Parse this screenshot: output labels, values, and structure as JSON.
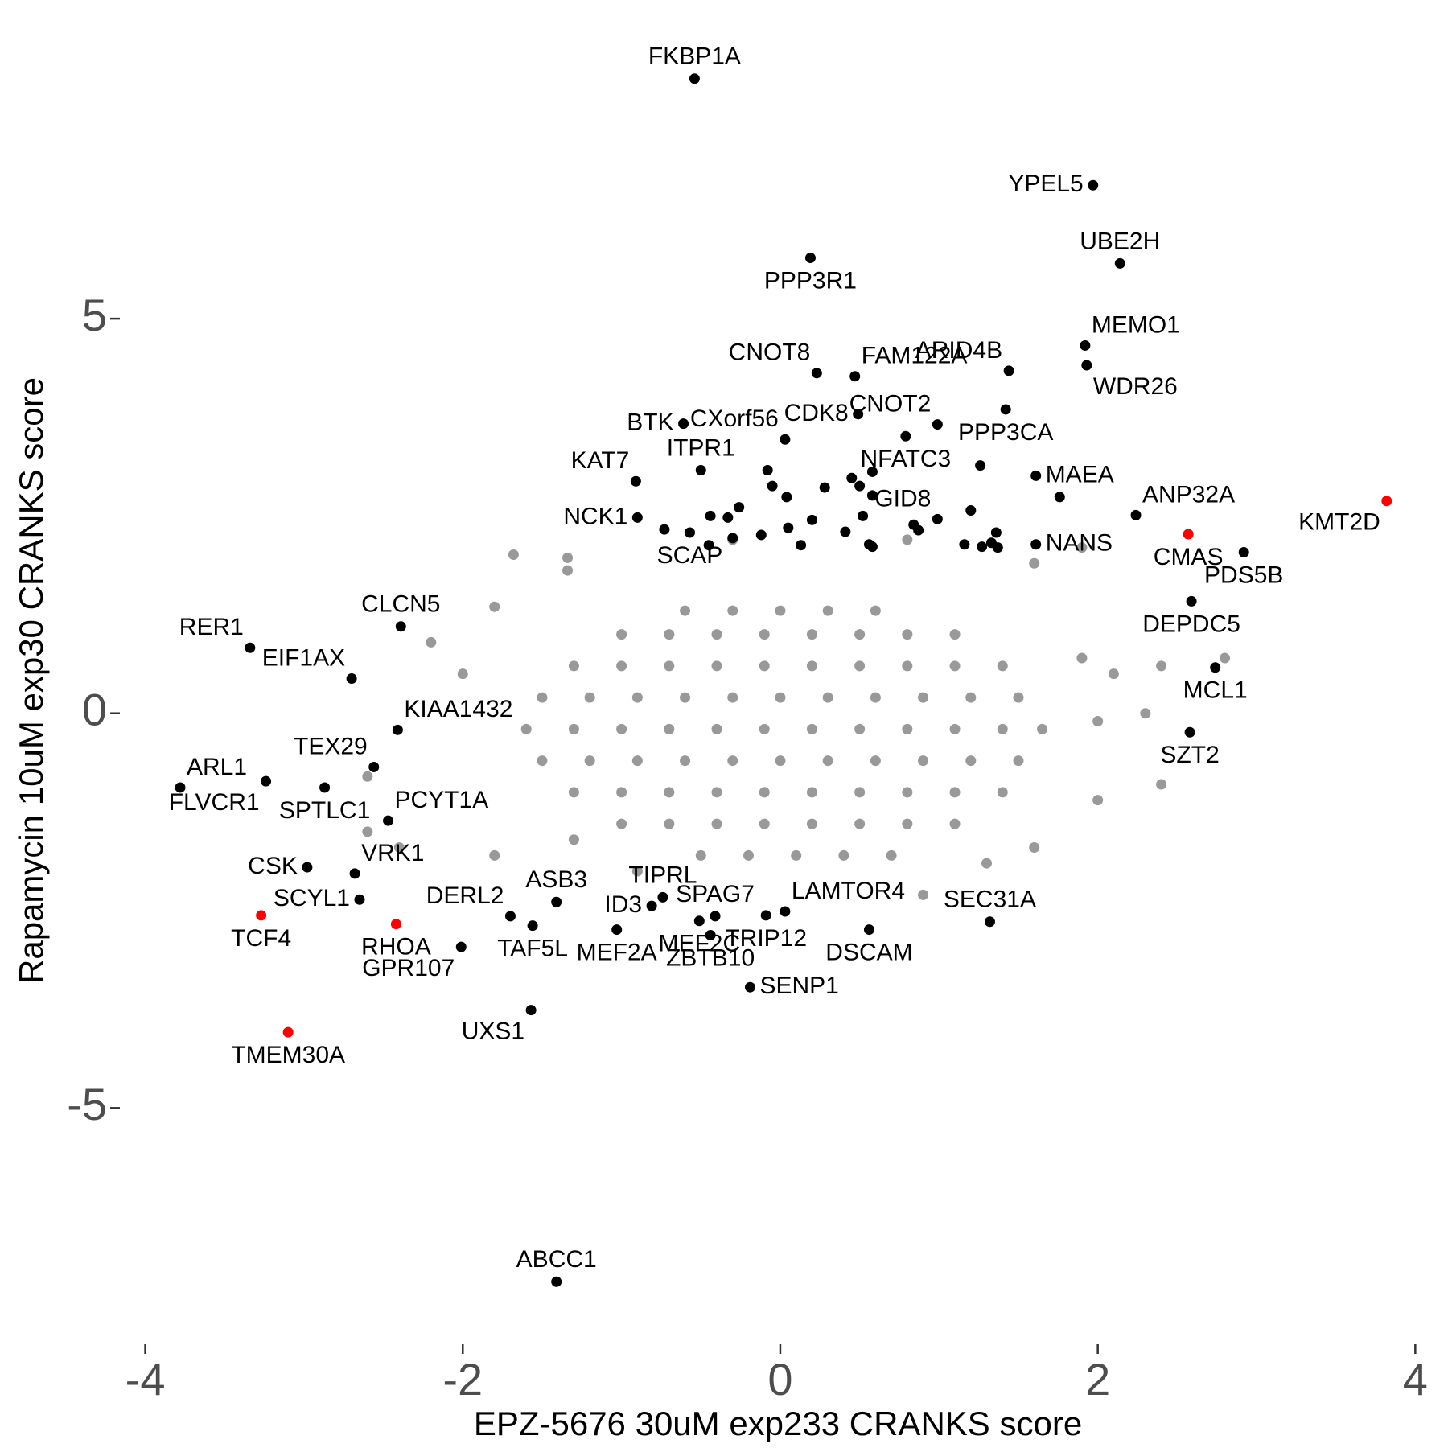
{
  "chart_data": {
    "type": "scatter",
    "x_label": "EPZ-5676 30uM exp233 CRANKS score",
    "y_label": "Rapamycin 10uM exp30 CRANKS score",
    "xlim": [
      -4.16,
      4.13
    ],
    "ylim": [
      -7.85,
      8.68
    ],
    "xticks": [
      -4,
      -2,
      0,
      2,
      4
    ],
    "yticks": [
      -5,
      0,
      5
    ],
    "grid": false,
    "series": [
      {
        "color": "#999999",
        "x": [
          -0.6,
          -0.3,
          0,
          0.3,
          0.6,
          -1.0,
          -0.7,
          -0.4,
          -0.1,
          0.2,
          0.5,
          0.8,
          1.1,
          -1.3,
          -1.0,
          -0.7,
          -0.4,
          -0.1,
          0.2,
          0.5,
          0.8,
          1.1,
          1.4,
          -1.5,
          -1.2,
          -0.9,
          -0.6,
          -0.3,
          0,
          0.3,
          0.6,
          0.9,
          1.2,
          1.5,
          -1.6,
          -1.3,
          -1.0,
          -0.7,
          -0.4,
          -0.1,
          0.2,
          0.5,
          0.8,
          1.1,
          1.4,
          1.65,
          -1.5,
          -1.2,
          -0.9,
          -0.6,
          -0.3,
          0,
          0.3,
          0.6,
          0.9,
          1.2,
          1.5,
          -1.3,
          -1.0,
          -0.7,
          -0.4,
          -0.1,
          0.2,
          0.5,
          0.8,
          1.1,
          1.4,
          -1.0,
          -0.7,
          -0.4,
          -0.1,
          0.2,
          0.5,
          0.8,
          1.1,
          -0.5,
          -0.2,
          0.1,
          0.4,
          0.7,
          -1.68,
          -1.34,
          -1.34,
          -1.8,
          -2.2,
          -2.0,
          -2.6,
          -2.4,
          -1.8,
          -2.6,
          1.9,
          2.1,
          2.4,
          2.8,
          2.0,
          2.4,
          2.0,
          1.6,
          1.3,
          0.9,
          -0.9,
          -1.3,
          1.6,
          1.9,
          -0.3,
          0.8,
          2.3
        ],
        "values": [
          1.3,
          1.3,
          1.3,
          1.3,
          1.3,
          1.0,
          1.0,
          1.0,
          1.0,
          1.0,
          1.0,
          1.0,
          1.0,
          0.6,
          0.6,
          0.6,
          0.6,
          0.6,
          0.6,
          0.6,
          0.6,
          0.6,
          0.6,
          0.2,
          0.2,
          0.2,
          0.2,
          0.2,
          0.2,
          0.2,
          0.2,
          0.2,
          0.2,
          0.2,
          -0.2,
          -0.2,
          -0.2,
          -0.2,
          -0.2,
          -0.2,
          -0.2,
          -0.2,
          -0.2,
          -0.2,
          -0.2,
          -0.2,
          -0.6,
          -0.6,
          -0.6,
          -0.6,
          -0.6,
          -0.6,
          -0.6,
          -0.6,
          -0.6,
          -0.6,
          -0.6,
          -1.0,
          -1.0,
          -1.0,
          -1.0,
          -1.0,
          -1.0,
          -1.0,
          -1.0,
          -1.0,
          -1.0,
          -1.4,
          -1.4,
          -1.4,
          -1.4,
          -1.4,
          -1.4,
          -1.4,
          -1.4,
          -1.8,
          -1.8,
          -1.8,
          -1.8,
          -1.8,
          2.01,
          1.97,
          1.81,
          1.35,
          0.9,
          0.5,
          -1.5,
          -1.7,
          -1.8,
          -0.8,
          0.7,
          0.5,
          0.6,
          0.7,
          -0.1,
          -0.9,
          -1.1,
          -1.7,
          -1.9,
          -2.3,
          -2.0,
          -1.6,
          1.9,
          2.1,
          2.2,
          2.2,
          0.0
        ]
      },
      {
        "color": "#000000",
        "x": [
          -0.54,
          1.97,
          2.14,
          0.19,
          1.92,
          1.93,
          1.44,
          0.23,
          0.47,
          0.99,
          -0.61,
          0.03,
          0.49,
          -0.5,
          0.79,
          1.42,
          -0.91,
          1.61,
          0.99,
          2.24,
          1.61,
          -0.9,
          -0.57,
          2.92,
          -2.39,
          2.59,
          -3.34,
          -2.7,
          2.74,
          -2.41,
          2.58,
          -2.56,
          -3.78,
          -3.24,
          -2.87,
          -2.47,
          -2.68,
          -2.98,
          -2.65,
          -1.7,
          -1.41,
          -1.56,
          -2.01,
          -1.57,
          -1.03,
          -0.81,
          -0.74,
          -0.41,
          -0.51,
          -0.44,
          -0.09,
          0.03,
          -0.19,
          0.56,
          1.32,
          -1.41,
          1.26,
          -0.08,
          -0.05,
          0.04,
          0.28,
          0.45,
          0.58,
          0.58,
          0.5,
          0.2,
          0.05,
          -0.12,
          -0.3,
          -0.73,
          -0.44,
          -0.33,
          -0.26,
          0.52,
          0.41,
          0.56,
          0.58,
          0.84,
          0.87,
          1.2,
          1.36,
          1.27,
          1.33,
          1.37,
          1.76,
          1.16,
          -0.45,
          0.13
        ],
        "values": [
          8.04,
          6.69,
          5.7,
          5.77,
          4.66,
          4.41,
          4.34,
          4.31,
          4.27,
          3.66,
          3.67,
          3.47,
          3.79,
          3.08,
          3.51,
          3.85,
          2.94,
          3.01,
          2.46,
          2.51,
          2.14,
          2.48,
          2.29,
          2.04,
          1.1,
          1.42,
          0.83,
          0.44,
          0.58,
          -0.21,
          -0.24,
          -0.68,
          -0.94,
          -0.86,
          -0.94,
          -1.36,
          -2.03,
          -1.95,
          -2.36,
          -2.57,
          -2.39,
          -2.69,
          -2.96,
          -3.76,
          -2.74,
          -2.44,
          -2.33,
          -2.57,
          -2.63,
          -2.81,
          -2.56,
          -2.51,
          -3.47,
          -2.74,
          -2.64,
          -7.2,
          3.14,
          3.08,
          2.88,
          2.74,
          2.86,
          2.98,
          3.06,
          2.76,
          2.88,
          2.45,
          2.35,
          2.26,
          2.22,
          2.33,
          2.5,
          2.48,
          2.61,
          2.5,
          2.3,
          2.14,
          2.11,
          2.39,
          2.32,
          2.57,
          2.29,
          2.11,
          2.16,
          2.1,
          2.74,
          2.14,
          2.13,
          2.13
        ],
        "labels": [
          "FKBP1A",
          "YPEL5",
          "UBE2H",
          "PPP3R1",
          "MEMO1",
          "WDR26",
          "ARID4B",
          "CNOT8",
          "FAM122A",
          "CNOT2",
          "BTK",
          "CXorf56",
          "CDK8",
          "ITPR1",
          "NFATC3",
          "PPP3CA",
          "KAT7",
          "MAEA",
          "GID8",
          "ANP32A",
          "NANS",
          "NCK1",
          "SCAP",
          "PDS5B",
          "CLCN5",
          "DEPDC5",
          "RER1",
          "EIF1AX",
          "MCL1",
          "KIAA1432",
          "SZT2",
          "TEX29",
          "ARL1",
          "FLVCR1",
          "SPTLC1",
          "PCYT1A",
          "VRK1",
          "CSK",
          "SCYL1",
          "DERL2",
          "ASB3",
          "TAF5L",
          "GPR107",
          "UXS1",
          "MEF2A",
          "ID3",
          "TIPRL",
          "SPAG7",
          "MEF2C",
          "ZBTB10",
          "TRIP12",
          "LAMTOR4",
          "SENP1",
          "DSCAM",
          "SEC31A",
          "ABCC1",
          null,
          null,
          null,
          null,
          null,
          null,
          null,
          null,
          null,
          null,
          null,
          null,
          null,
          null,
          null,
          null,
          null,
          null,
          null,
          null,
          null,
          null,
          null,
          null,
          null,
          null,
          null,
          null,
          null,
          null,
          null,
          null
        ]
      },
      {
        "color": "#ff0000",
        "x": [
          3.82,
          2.57,
          -3.27,
          -2.42,
          -3.1
        ],
        "values": [
          2.69,
          2.27,
          -2.56,
          -2.67,
          -4.04
        ],
        "labels": [
          "KMT2D",
          "CMAS",
          "TCF4",
          "RHOA",
          "TMEM30A"
        ]
      }
    ]
  }
}
